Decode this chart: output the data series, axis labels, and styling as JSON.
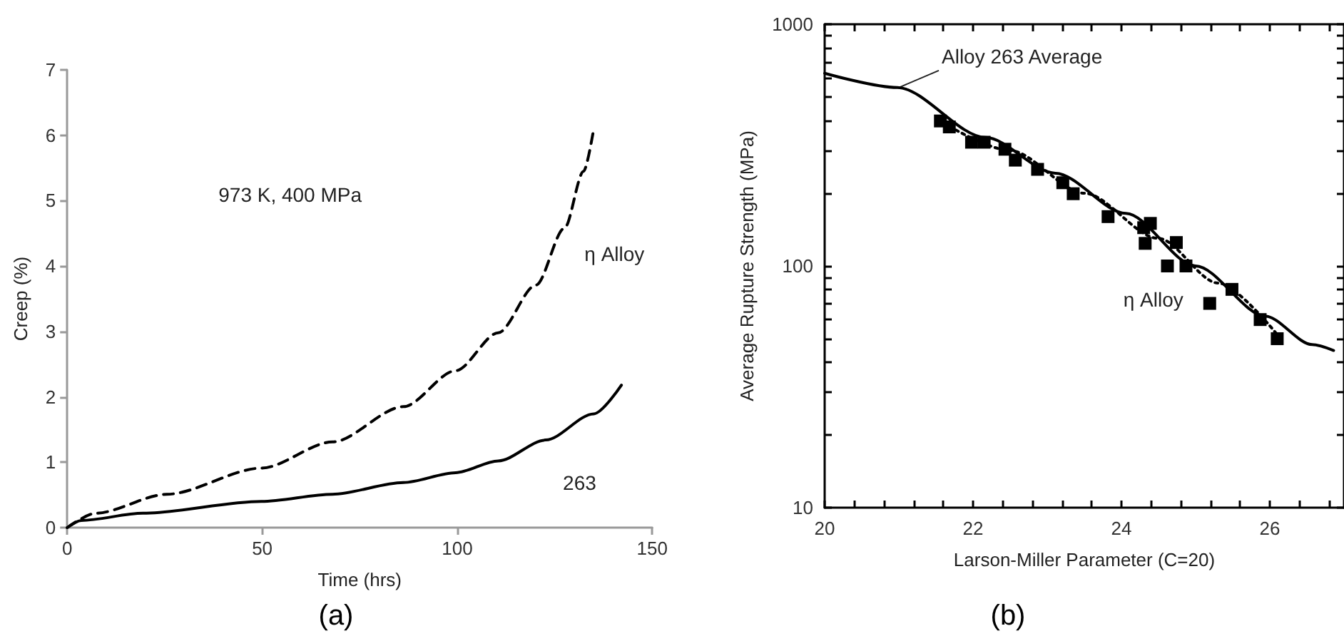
{
  "chart_data": [
    {
      "type": "line",
      "title": "(a)",
      "xlabel": "Time (hrs)",
      "ylabel": "Creep (%)",
      "xlim": [
        0,
        150
      ],
      "xticks": [
        0,
        50,
        100,
        150
      ],
      "ylim": [
        0,
        7
      ],
      "yticks": [
        0,
        1,
        2,
        3,
        4,
        5,
        6,
        7
      ],
      "grid": false,
      "legend": false,
      "annotations": [
        "973 K, 400 MPa"
      ],
      "series": [
        {
          "name": "η Alloy",
          "color": "#000000",
          "line_style": "dashed",
          "marker": "none",
          "x": [
            0,
            7.3,
            25.5,
            49.8,
            68,
            86.2,
            99.6,
            110.5,
            120.2,
            127.5,
            132.4,
            135
          ],
          "values": [
            0,
            0.22,
            0.51,
            0.91,
            1.31,
            1.85,
            2.4,
            2.98,
            3.71,
            4.58,
            5.45,
            6.1
          ]
        },
        {
          "name": "263",
          "color": "#000000",
          "line_style": "solid",
          "marker": "none",
          "x": [
            0,
            3.6,
            19.4,
            49.8,
            68,
            86.2,
            99.6,
            110.5,
            122.7,
            135,
            142.1
          ],
          "values": [
            0,
            0.11,
            0.22,
            0.4,
            0.51,
            0.69,
            0.84,
            1.02,
            1.34,
            1.74,
            2.18
          ]
        }
      ]
    },
    {
      "type": "scatter",
      "title": "(b)",
      "xlabel": "Larson-Miller Parameter (C=20)",
      "ylabel": "Average Rupture Strength (MPa)",
      "log": "y",
      "xlim": [
        20,
        27
      ],
      "xticks": [
        20,
        {
          "value": 20.4,
          "label": null
        },
        {
          "value": 20.8,
          "label": null
        },
        {
          "value": 21.2,
          "label": null
        },
        {
          "value": 21.6,
          "label": null
        },
        22,
        {
          "value": 22.4,
          "label": null
        },
        {
          "value": 22.8,
          "label": null
        },
        {
          "value": 23.2,
          "label": null
        },
        {
          "value": 23.6,
          "label": null
        },
        24,
        {
          "value": 24.4,
          "label": null
        },
        {
          "value": 24.8,
          "label": null
        },
        {
          "value": 25.2,
          "label": null
        },
        {
          "value": 25.6,
          "label": null
        },
        26,
        {
          "value": 26.4,
          "label": null
        },
        {
          "value": 26.8,
          "label": null
        }
      ],
      "ylim": [
        10,
        1000
      ],
      "yticks": [
        10,
        {
          "value": 20,
          "label": null
        },
        {
          "value": 30,
          "label": null
        },
        {
          "value": 40,
          "label": null
        },
        {
          "value": 50,
          "label": null
        },
        {
          "value": 60,
          "label": null
        },
        {
          "value": 70,
          "label": null
        },
        {
          "value": 80,
          "label": null
        },
        {
          "value": 90,
          "label": null
        },
        100,
        {
          "value": 200,
          "label": null
        },
        {
          "value": 300,
          "label": null
        },
        {
          "value": 400,
          "label": null
        },
        {
          "value": 500,
          "label": null
        },
        {
          "value": 600,
          "label": null
        },
        {
          "value": 700,
          "label": null
        },
        {
          "value": 800,
          "label": null
        },
        {
          "value": 900,
          "label": null
        },
        1000
      ],
      "grid": false,
      "legend": false,
      "annotations": [
        {
          "text": "Alloy 263 Average",
          "x": 21,
          "y": 547
        }
      ],
      "series": [
        {
          "type": "line",
          "color": "#000000",
          "line_style": "solid",
          "marker": "none",
          "x": [
            20,
            20.98,
            22.17,
            23.11,
            24.06,
            25.0,
            25.94,
            26.57,
            26.86
          ],
          "values": [
            627,
            547,
            340,
            242,
            165,
            100,
            62,
            47.3,
            44.7
          ]
        },
        {
          "name": "η Alloy",
          "color": "#000000",
          "marker": "square",
          "x": [
            21.56,
            21.68,
            21.98,
            22.15,
            22.43,
            22.57,
            22.87,
            23.21,
            23.35,
            23.82,
            24.3,
            24.39,
            24.32,
            24.74,
            24.62,
            24.87,
            25.19,
            25.49,
            25.87,
            26.1
          ],
          "values": [
            398,
            376,
            325,
            325,
            304,
            274,
            251,
            221,
            199,
            160,
            144,
            150,
            124,
            125,
            100,
            100,
            70,
            80,
            60,
            50
          ]
        },
        {
          "type": "line",
          "color": "#000000",
          "line_style": "dotted",
          "marker": "none",
          "x": [
            21.6,
            22.5,
            23.5,
            24.5,
            25.3,
            26.1
          ],
          "values": [
            390,
            300,
            200,
            130,
            85,
            52
          ]
        }
      ]
    }
  ]
}
